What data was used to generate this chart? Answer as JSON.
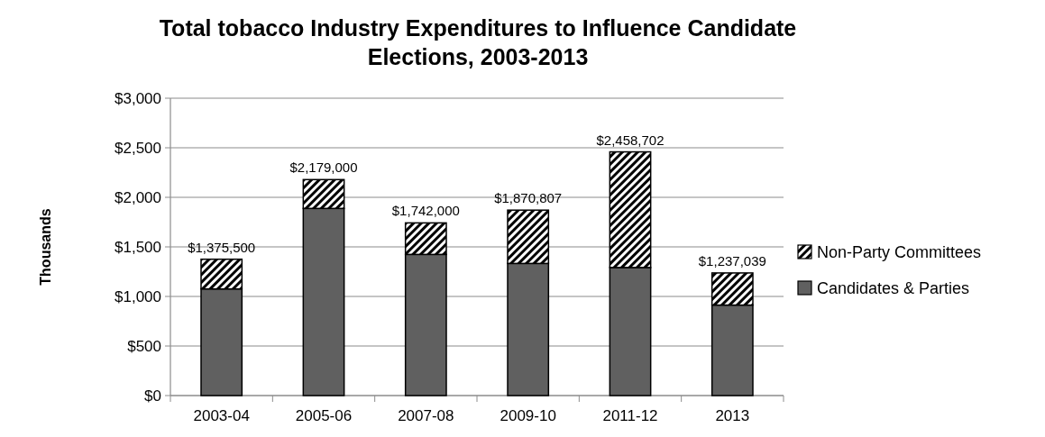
{
  "chart_data": {
    "type": "bar",
    "title": "Total tobacco Industry Expenditures to Influence Candidate Elections, 2003-2013",
    "ylabel": "Thousands",
    "categories": [
      "2003-04",
      "2005-06",
      "2007-08",
      "2009-10",
      "2011-12",
      "2013"
    ],
    "stacked": true,
    "series": [
      {
        "name": "Candidates & Parties",
        "color": "#606060",
        "values": [
          1076,
          1888,
          1424,
          1333,
          1292,
          913
        ]
      },
      {
        "name": "Non-Party Committees",
        "color": "#000000",
        "values": [
          299.5,
          291,
          318,
          537.807,
          1166.702,
          324.039
        ]
      }
    ],
    "totals": [
      "$1,375,500",
      "$2,179,000",
      "$1,742,000",
      "$1,870,807",
      "$2,458,702",
      "$1,237,039"
    ],
    "ylim": [
      0,
      3000
    ],
    "yticks": [
      {
        "value": 0,
        "label": "$0"
      },
      {
        "value": 500,
        "label": "$500"
      },
      {
        "value": 1000,
        "label": "$1,000"
      },
      {
        "value": 1500,
        "label": "$1,500"
      },
      {
        "value": 2000,
        "label": "$2,000"
      },
      {
        "value": 2500,
        "label": "$2,500"
      },
      {
        "value": 3000,
        "label": "$3,000"
      }
    ],
    "grid": "y",
    "legend": "right"
  }
}
